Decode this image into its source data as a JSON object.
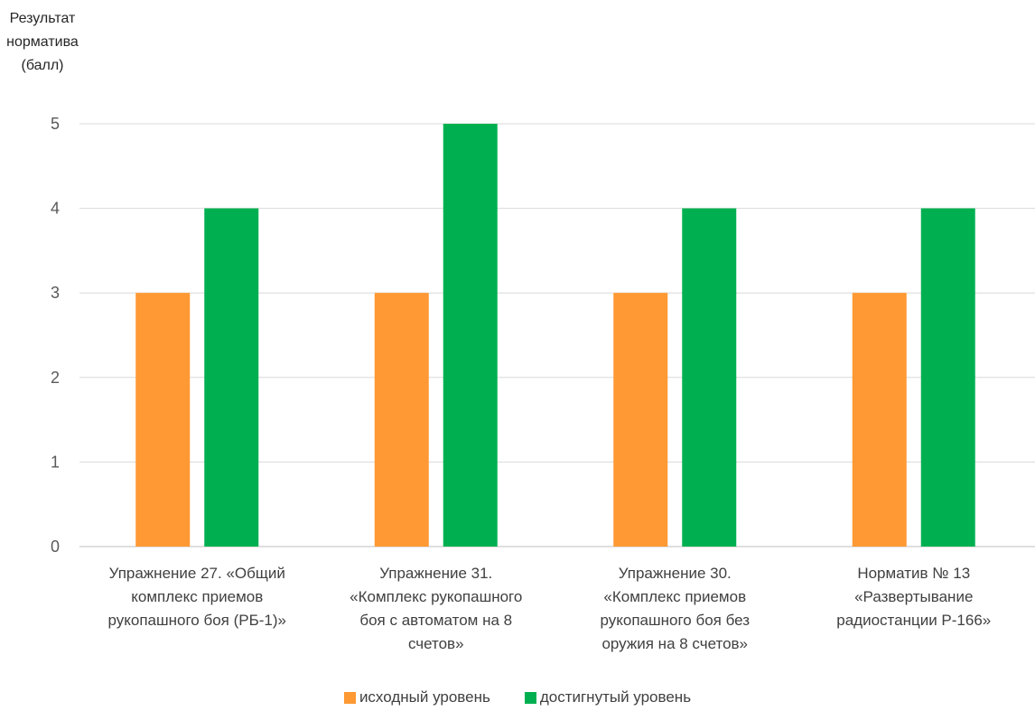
{
  "chart_data": {
    "type": "bar",
    "ylabel_lines": [
      "Результат",
      "норматива",
      "(балл)"
    ],
    "xlabel": "",
    "ylim": [
      0,
      5
    ],
    "yticks": [
      "0",
      "1",
      "2",
      "3",
      "4",
      "5"
    ],
    "grid": true,
    "legend_position": "bottom",
    "categories": [
      {
        "lines": [
          "Упражнение 27. «Общий",
          "комплекс приемов",
          "рукопашного боя (РБ-1)»"
        ]
      },
      {
        "lines": [
          "Упражнение 31.",
          "«Комплекс рукопашного",
          "боя с автоматом на 8",
          "счетов»"
        ]
      },
      {
        "lines": [
          "Упражнение 30.",
          "«Комплекс приемов",
          "рукопашного боя без",
          "оружия на 8 счетов»"
        ]
      },
      {
        "lines": [
          "Норматив № 13",
          "«Развертывание",
          "радиостанции Р-166»"
        ]
      }
    ],
    "series": [
      {
        "name": "исходный уровень",
        "color": "#FF9933",
        "values": [
          3,
          3,
          3,
          3
        ]
      },
      {
        "name": "достигнутый уровень",
        "color": "#00B050",
        "values": [
          4,
          5,
          4,
          4
        ]
      }
    ]
  }
}
